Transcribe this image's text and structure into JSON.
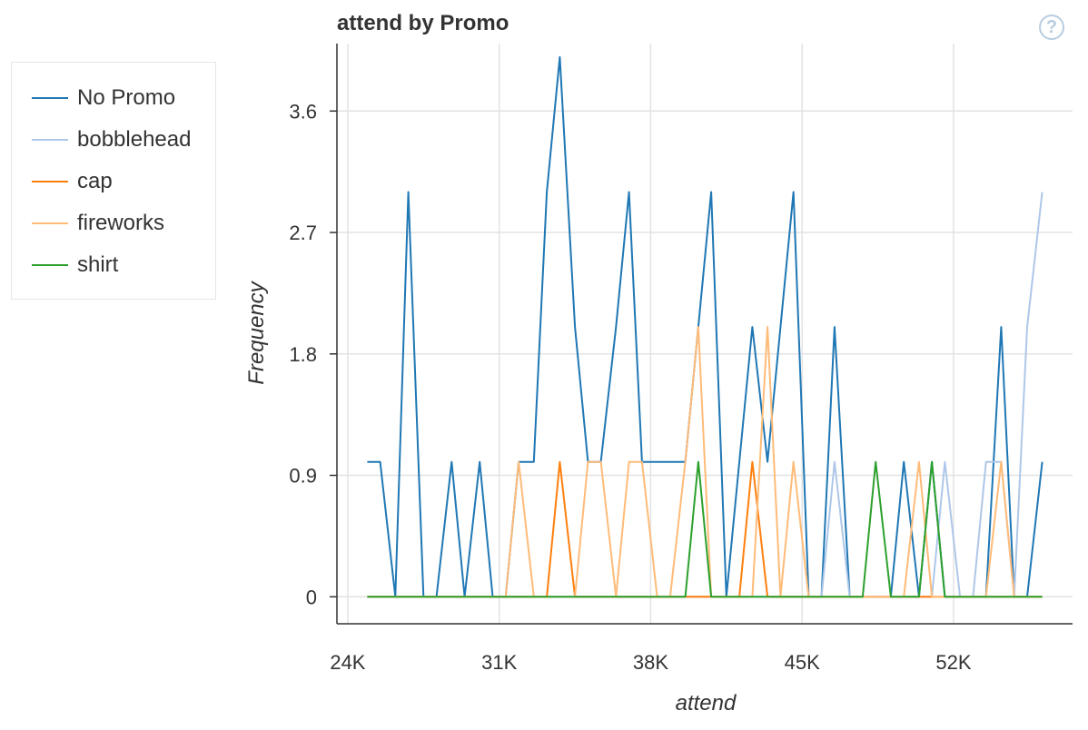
{
  "chart_data": {
    "type": "line",
    "title": "attend by Promo",
    "xlabel": "attend",
    "ylabel": "Frequency",
    "xlim": [
      23500,
      57500
    ],
    "ylim": [
      -0.2,
      4.1
    ],
    "xticks": [
      24000,
      31000,
      38000,
      45000,
      52000
    ],
    "xtick_labels": [
      "24K",
      "31K",
      "38K",
      "45K",
      "52K"
    ],
    "yticks": [
      0,
      0.9,
      1.8,
      2.7,
      3.6
    ],
    "ytick_labels": [
      "0",
      "0.9",
      "1.8",
      "2.7",
      "3.6"
    ],
    "grid": true,
    "legend_position": "left",
    "x": [
      24900,
      25500,
      26200,
      26800,
      27500,
      28100,
      28800,
      29400,
      30100,
      30700,
      31300,
      31900,
      32600,
      33200,
      33800,
      34500,
      35100,
      35700,
      36400,
      37000,
      37600,
      38300,
      38900,
      39600,
      40200,
      40800,
      41500,
      42100,
      42700,
      43400,
      44000,
      44600,
      45300,
      45900,
      46500,
      47200,
      47800,
      48400,
      49100,
      49700,
      50400,
      51000,
      51600,
      52300,
      52900,
      53500,
      54200,
      54800,
      55400,
      56100
    ],
    "series": [
      {
        "name": "No Promo",
        "color": "#1f77b4",
        "values": [
          1,
          1,
          0,
          3,
          0,
          0,
          1,
          0,
          1,
          0,
          0,
          1,
          1,
          3,
          4,
          2,
          1,
          1,
          2,
          3,
          1,
          1,
          1,
          1,
          2,
          3,
          0,
          1,
          2,
          1,
          2,
          3,
          0,
          0,
          2,
          0,
          0,
          0,
          0,
          1,
          0,
          1,
          0,
          0,
          0,
          0,
          2,
          0,
          0,
          1
        ]
      },
      {
        "name": "bobblehead",
        "color": "#aec7e8",
        "values": [
          0,
          0,
          0,
          0,
          0,
          0,
          0,
          0,
          0,
          0,
          0,
          0,
          0,
          0,
          0,
          0,
          0,
          0,
          0,
          0,
          0,
          0,
          0,
          0,
          0,
          0,
          0,
          0,
          0,
          0,
          0,
          0,
          0,
          0,
          1,
          0,
          0,
          0,
          0,
          0,
          0,
          0,
          1,
          0,
          0,
          1,
          1,
          0,
          2,
          3
        ]
      },
      {
        "name": "cap",
        "color": "#ff7f0e",
        "values": [
          0,
          0,
          0,
          0,
          0,
          0,
          0,
          0,
          0,
          0,
          0,
          0,
          0,
          0,
          1,
          0,
          0,
          0,
          0,
          0,
          0,
          0,
          0,
          0,
          0,
          0,
          0,
          0,
          1,
          0,
          0,
          0,
          0,
          0,
          0,
          0,
          0,
          0,
          0,
          0,
          0,
          0,
          0,
          0,
          0,
          0,
          0,
          0,
          0,
          0
        ]
      },
      {
        "name": "fireworks",
        "color": "#ffbb78",
        "values": [
          0,
          0,
          0,
          0,
          0,
          0,
          0,
          0,
          0,
          0,
          0,
          1,
          0,
          0,
          0,
          0,
          1,
          1,
          0,
          1,
          1,
          0,
          0,
          1,
          2,
          0,
          0,
          0,
          0,
          2,
          0,
          1,
          0,
          0,
          0,
          0,
          0,
          0,
          0,
          0,
          1,
          0,
          0,
          0,
          0,
          0,
          1,
          0,
          0,
          0
        ]
      },
      {
        "name": "shirt",
        "color": "#2ca02c",
        "values": [
          0,
          0,
          0,
          0,
          0,
          0,
          0,
          0,
          0,
          0,
          0,
          0,
          0,
          0,
          0,
          0,
          0,
          0,
          0,
          0,
          0,
          0,
          0,
          0,
          1,
          0,
          0,
          0,
          0,
          0,
          0,
          0,
          0,
          0,
          0,
          0,
          0,
          1,
          0,
          0,
          0,
          1,
          0,
          0,
          0,
          0,
          0,
          0,
          0,
          0
        ]
      }
    ]
  },
  "help_glyph": "?"
}
